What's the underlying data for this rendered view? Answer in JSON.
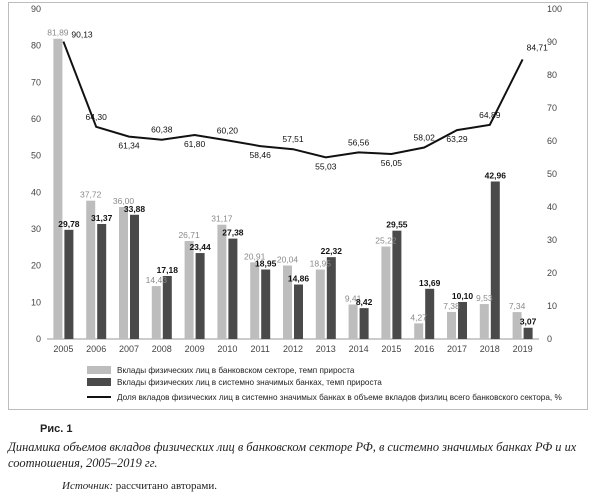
{
  "chart_data": {
    "type": "bar",
    "categories": [
      "2005",
      "2006",
      "2007",
      "2008",
      "2009",
      "2010",
      "2011",
      "2012",
      "2013",
      "2014",
      "2015",
      "2016",
      "2017",
      "2018",
      "2019"
    ],
    "left_axis": {
      "ticks": [
        "0",
        "10",
        "20",
        "30",
        "40",
        "50",
        "60",
        "70",
        "80",
        "90"
      ],
      "ylim": [
        0,
        90
      ]
    },
    "right_axis": {
      "ticks": [
        "0",
        "10",
        "20",
        "30",
        "40",
        "50",
        "60",
        "70",
        "80",
        "90",
        "100"
      ],
      "ylim": [
        0,
        100
      ]
    },
    "series": [
      {
        "name": "Вклады физических лиц в банковском секторе, темп прироста",
        "type": "bar",
        "axis": "left",
        "color": "#bdbdbd",
        "values": [
          81.89,
          37.72,
          36.0,
          14.43,
          26.71,
          31.17,
          20.91,
          20.04,
          18.95,
          9.41,
          25.22,
          4.27,
          7.38,
          9.53,
          7.34
        ],
        "labels": [
          "81,89",
          "37,72",
          "36,00",
          "14,43",
          "26,71",
          "31,17",
          "20,91",
          "20,04",
          "18,95",
          "9,41",
          "25,22",
          "4,27",
          "7,38",
          "9,53",
          "7,34"
        ]
      },
      {
        "name": "Вклады физических лиц в системно значимых банках, темп прироста",
        "type": "bar",
        "axis": "left",
        "color": "#4a4a4a",
        "values": [
          29.78,
          31.37,
          33.88,
          17.18,
          23.44,
          27.38,
          18.95,
          14.86,
          22.32,
          8.42,
          29.55,
          13.69,
          10.1,
          42.96,
          3.07
        ],
        "labels": [
          "29,78",
          "31,37",
          "33,88",
          "17,18",
          "23,44",
          "27,38",
          "18,95",
          "14,86",
          "22,32",
          "8,42",
          "29,55",
          "13,69",
          "10,10",
          "42,96",
          "3,07"
        ]
      },
      {
        "name": "Доля вкладов физических лиц в системно значимых банках в объеме вкладов физлиц всего банковского сектора, %",
        "type": "line",
        "axis": "right",
        "color": "#111111",
        "values": [
          90.13,
          64.3,
          61.34,
          60.38,
          61.8,
          60.2,
          58.46,
          57.51,
          55.03,
          56.56,
          56.05,
          58.02,
          63.29,
          64.89,
          84.71
        ],
        "labels": [
          "90,13",
          "64,30",
          "61,34",
          "60,38",
          "61,80",
          "60,20",
          "58,46",
          "57,51",
          "55,03",
          "56,56",
          "56,05",
          "58,02",
          "63,29",
          "64,89",
          "84,71"
        ]
      }
    ],
    "legend_placement": "bottom",
    "grid": false
  },
  "figure": {
    "label": "Рис. 1",
    "caption": "Динамика объемов вкладов физических лиц в банковском секторе РФ, в системно значимых банках РФ и их соотношения, 2005–2019 гг.",
    "source_label": "Источник:",
    "source_text": " рассчитано авторами."
  }
}
